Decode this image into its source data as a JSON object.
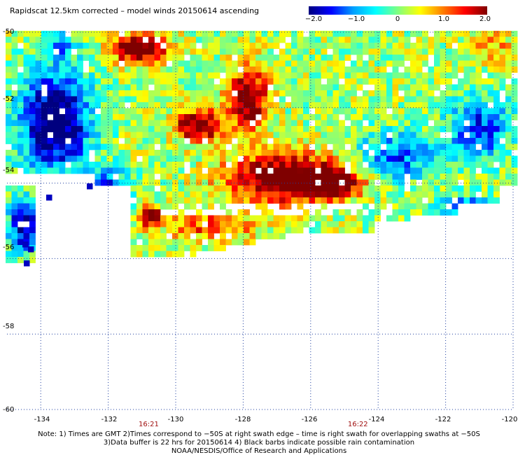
{
  "title": "Rapidscat 12.5km corrected – model winds 20150614 ascending",
  "colorbar": {
    "labels": [
      "−2.0",
      "−1.0",
      "0",
      "1.0",
      "2.0"
    ],
    "stops": [
      "#00007f",
      "#0000ff",
      "#00a0ff",
      "#00ffff",
      "#80ff80",
      "#ffff00",
      "#ff8000",
      "#ff0000",
      "#7f0000"
    ],
    "range": [
      -2.0,
      2.0
    ]
  },
  "axes": {
    "lat_labels": [
      "-50",
      "-52",
      "-54",
      "-56",
      "-58",
      "-60"
    ],
    "lon_labels": [
      "-134",
      "-132",
      "-130",
      "-128",
      "-126",
      "-124",
      "-122",
      "-120"
    ],
    "lat_range": [
      -60,
      -50
    ],
    "lon_range": [
      -135,
      -120
    ]
  },
  "time_labels": [
    {
      "text": "16:21",
      "lon": -130.8
    },
    {
      "text": "16:22",
      "lon": -124.6
    }
  ],
  "notes": [
    "Note: 1) Times are GMT 2)Times correspond to −50S at right swath edge – time is right swath for overlapping swaths at −50S",
    "3)Data buffer is 22 hrs for 20150614 4) Black barbs indicate possible rain contamination",
    "NOAA/NESDIS/Office of Research and Applications"
  ]
}
